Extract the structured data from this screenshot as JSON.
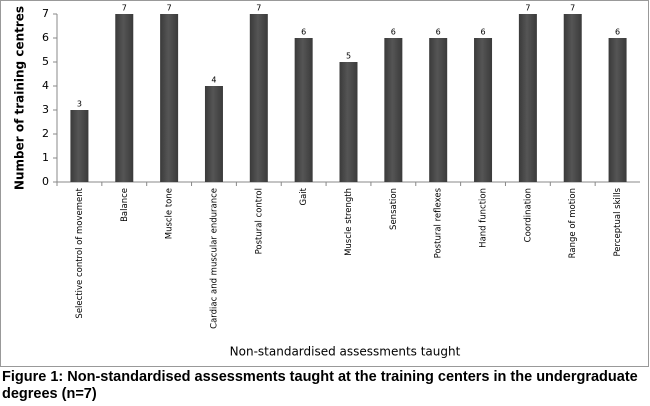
{
  "chart_data": {
    "type": "bar",
    "y_label": "Number of training centres",
    "x_label": "Non-standardised assessments taught",
    "caption": "Figure 1: Non-standardised assessments taught at the training centers in the undergraduate degrees (n=7)",
    "categories": [
      "Selective control of movement",
      "Balance",
      "Muscle tone",
      "Cardiac and muscular endurance",
      "Postural control",
      "Gait",
      "Muscle strength",
      "Sensation",
      "Postural reflexes",
      "Hand function",
      "Coordination",
      "Range of motion",
      "Perceptual skills"
    ],
    "values": [
      3,
      7,
      7,
      4,
      7,
      6,
      5,
      6,
      6,
      6,
      7,
      7,
      6
    ],
    "color": "#555555",
    "ylim": [
      0,
      7
    ],
    "yticks": [
      0,
      1,
      2,
      3,
      4,
      5,
      6,
      7
    ]
  }
}
